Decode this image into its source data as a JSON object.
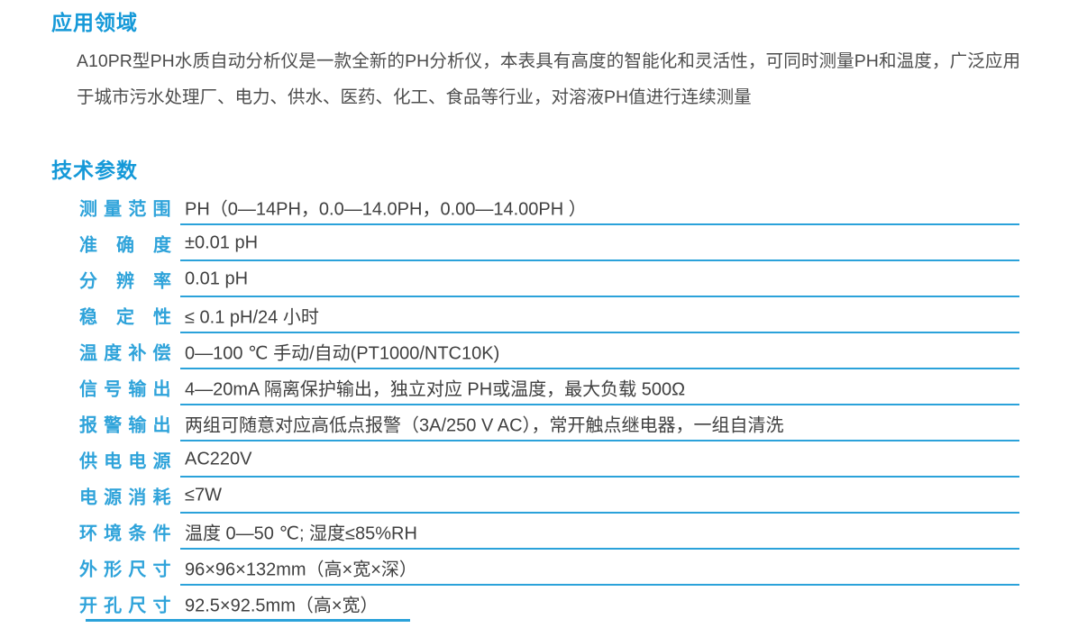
{
  "colors": {
    "heading_blue": "#1599d8",
    "label_blue": "#2fa3da",
    "divider_blue": "#2ba2da",
    "paragraph_text": "#4d4d4d",
    "value_text": "#404040",
    "background": "#ffffff"
  },
  "application": {
    "title": "应用领域",
    "paragraph": "A10PR型PH水质自动分析仪是一款全新的PH分析仪，本表具有高度的智能化和灵活性，可同时测量PH和温度，广泛应用于城市污水处理厂、电力、供水、医药、化工、食品等行业，对溶液PH值进行连续测量"
  },
  "specs": {
    "title": "技术参数",
    "rows": [
      {
        "label": "测量范围",
        "value": "PH（0—14PH，0.0—14.0PH，0.00—14.00PH ）"
      },
      {
        "label": "准确度",
        "value": "±0.01 pH"
      },
      {
        "label": "分辨率",
        "value": "0.01 pH"
      },
      {
        "label": "稳定性",
        "value": "≤ 0.1 pH/24 小时"
      },
      {
        "label": "温度补偿",
        "value": "0—100 ℃ 手动/自动(PT1000/NTC10K)"
      },
      {
        "label": "信号输出",
        "value": "4—20mA 隔离保护输出，独立对应 PH或温度，最大负载 500Ω"
      },
      {
        "label": "报警输出",
        "value": "两组可随意对应高低点报警（3A/250 V AC），常开触点继电器，一组自清洗"
      },
      {
        "label": "供电电源",
        "value": "AC220V"
      },
      {
        "label": "电源消耗",
        "value": "≤7W"
      },
      {
        "label": "环境条件",
        "value": "温度 0—50 ℃; 湿度≤85%RH"
      },
      {
        "label": "外形尺寸",
        "value": "96×96×132mm（高×宽×深）"
      },
      {
        "label": "开孔尺寸",
        "value": "92.5×92.5mm（高×宽）"
      }
    ]
  }
}
